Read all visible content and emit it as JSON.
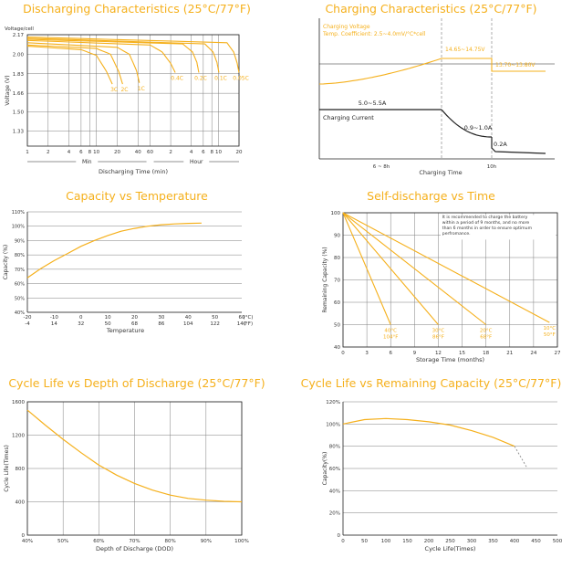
{
  "colors": {
    "accent": "#f5b01c",
    "grid": "#7f7f7f",
    "axis": "#222222",
    "text": "#333333",
    "dash": "#8a8a8a"
  },
  "chart_data": [
    {
      "id": "discharge",
      "type": "line",
      "title": "Discharging Characteristics (25°C/77°F)",
      "ylabel": "Voltage (V)",
      "ytitle": "Voltage/cell",
      "xlabel": "Discharging Time (min)",
      "y_ticks": [
        "2.17",
        "2.00",
        "1.83",
        "1.66",
        "1.50",
        "1.33"
      ],
      "x_ticks": [
        "1",
        "2",
        "4",
        "6",
        "8",
        "10",
        "20",
        "40",
        "60",
        "2",
        "4",
        "6",
        "8",
        "10",
        "20"
      ],
      "min_label": "Min",
      "hour_label": "Hour",
      "series": [
        {
          "name": "3C",
          "label": "3C",
          "points": [
            [
              1,
              2.07
            ],
            [
              6,
              2.04
            ],
            [
              10,
              1.99
            ],
            [
              14,
              1.85
            ],
            [
              17,
              1.74
            ]
          ]
        },
        {
          "name": "2C",
          "label": "2C",
          "points": [
            [
              1,
              2.08
            ],
            [
              10,
              2.05
            ],
            [
              16,
              2.0
            ],
            [
              21,
              1.85
            ],
            [
              24,
              1.74
            ]
          ]
        },
        {
          "name": "1C",
          "label": "1C",
          "points": [
            [
              1,
              2.1
            ],
            [
              20,
              2.06
            ],
            [
              30,
              2.0
            ],
            [
              38,
              1.86
            ],
            [
              42,
              1.75
            ]
          ]
        },
        {
          "name": "0.4C",
          "label": "0.4C",
          "points": [
            [
              1,
              2.12
            ],
            [
              60,
              2.08
            ],
            [
              90,
              2.02
            ],
            [
              120,
              1.92
            ],
            [
              140,
              1.84
            ]
          ]
        },
        {
          "name": "0.2C",
          "label": "0.2C",
          "points": [
            [
              1,
              2.13
            ],
            [
              180,
              2.09
            ],
            [
              250,
              2.02
            ],
            [
              290,
              1.93
            ],
            [
              310,
              1.84
            ]
          ]
        },
        {
          "name": "0.1C",
          "label": "0.1C",
          "points": [
            [
              1,
              2.14
            ],
            [
              380,
              2.09
            ],
            [
              500,
              2.02
            ],
            [
              570,
              1.93
            ],
            [
              610,
              1.84
            ]
          ]
        },
        {
          "name": "0.05C",
          "label": "0.05C",
          "points": [
            [
              1,
              2.15
            ],
            [
              800,
              2.1
            ],
            [
              1000,
              2.02
            ],
            [
              1130,
              1.92
            ],
            [
              1200,
              1.84
            ]
          ]
        }
      ]
    },
    {
      "id": "charge",
      "type": "line",
      "title": "Charging Characteristics (25°C/77°F)",
      "voltage_label_1": "Charging Voltage",
      "voltage_label_2": "Temp. Coefficient: 2.5~4.0mV/°C*cell",
      "label_1465": "14.65~14.75V",
      "label_1370": "13.70~13.80V",
      "label_current": "5.0~5.5A",
      "label_current_name": "Charging Current",
      "label_09": "0.9~1.0A",
      "label_02": "0.2A",
      "x_tick_1": "6 ~ 8h",
      "x_tick_2": "10h",
      "xlabel": "Charging Time"
    },
    {
      "id": "capacity_temp",
      "type": "line",
      "title": "Capacity vs Temperature",
      "ylabel": "Capacity (%)",
      "xlabel": "Temperature",
      "ylim": [
        40,
        110
      ],
      "y_ticks": [
        "110%",
        "100%",
        "90%",
        "80%",
        "70%",
        "60%",
        "50%",
        "40%"
      ],
      "x_ticks_c": [
        "-20",
        "-10",
        "0",
        "10",
        "20",
        "30",
        "40",
        "50",
        "60"
      ],
      "x_ticks_f": [
        "-4",
        "14",
        "32",
        "50",
        "68",
        "86",
        "104",
        "122",
        "140"
      ],
      "unit_c": "(°C)",
      "unit_f": "(°F)",
      "x": [
        -20,
        -15,
        -10,
        -5,
        0,
        5,
        10,
        15,
        20,
        25,
        30,
        35,
        40,
        45
      ],
      "y": [
        64,
        70.5,
        76,
        81,
        86,
        90,
        93.5,
        96.5,
        98.5,
        100,
        101,
        101.6,
        102,
        102.2
      ]
    },
    {
      "id": "self_discharge",
      "type": "line",
      "title": "Self-discharge vs Time",
      "ylabel": "Remaining Capacity (%)",
      "xlabel": "Storage Time (months)",
      "xlim": [
        0,
        27
      ],
      "ylim": [
        40,
        100
      ],
      "x_ticks": [
        "0",
        "3",
        "6",
        "9",
        "12",
        "15",
        "18",
        "21",
        "24",
        "27"
      ],
      "y_ticks": [
        "100",
        "90",
        "80",
        "70",
        "60",
        "50",
        "40"
      ],
      "note": "It is recommended to charge the battery within a period of 9 months, and no more than 6 months in order to ensure optimum perfromance.",
      "series": [
        {
          "name": "40°C 104°F",
          "label_c": "40°C",
          "label_f": "104°F",
          "x": [
            0,
            6
          ],
          "y": [
            100,
            50
          ]
        },
        {
          "name": "30°C 86°F",
          "label_c": "30°C",
          "label_f": "86°F",
          "x": [
            0,
            12
          ],
          "y": [
            100,
            50
          ]
        },
        {
          "name": "20°C 68°F",
          "label_c": "20°C",
          "label_f": "68°F",
          "x": [
            0,
            18
          ],
          "y": [
            100,
            50
          ]
        },
        {
          "name": "10°C 50°F",
          "label_c": "10°C",
          "label_f": "50°F",
          "x": [
            0,
            26
          ],
          "y": [
            100,
            51
          ]
        }
      ]
    },
    {
      "id": "cycle_dod",
      "type": "line",
      "title": "Cycle Life vs Depth of Discharge (25°C/77°F)",
      "ylabel": "Cycle Life(Times)",
      "xlabel": "Depth of Discharge (DOD)",
      "xlim": [
        40,
        100
      ],
      "ylim": [
        0,
        1600
      ],
      "x_ticks": [
        "40%",
        "50%",
        "60%",
        "70%",
        "80%",
        "90%",
        "100%"
      ],
      "y_ticks": [
        "1600",
        "1200",
        "800",
        "400",
        "0"
      ],
      "x": [
        40,
        45,
        50,
        55,
        60,
        65,
        70,
        75,
        80,
        85,
        90,
        95,
        100
      ],
      "y": [
        1500,
        1320,
        1150,
        990,
        840,
        720,
        620,
        540,
        480,
        440,
        420,
        405,
        400
      ]
    },
    {
      "id": "cycle_capacity",
      "type": "line",
      "title": "Cycle Life vs Remaining Capacity (25°C/77°F)",
      "ylabel": "Capacity(%)",
      "xlabel": "Cycle Life(Times)",
      "xlim": [
        0,
        500
      ],
      "ylim": [
        0,
        120
      ],
      "x_ticks": [
        "0",
        "50",
        "100",
        "150",
        "200",
        "250",
        "300",
        "350",
        "400",
        "450",
        "500"
      ],
      "y_ticks": [
        "120%",
        "100%",
        "80%",
        "60%",
        "40%",
        "20%",
        "0"
      ],
      "x": [
        0,
        50,
        100,
        150,
        200,
        250,
        300,
        350,
        400
      ],
      "y": [
        100,
        104,
        105,
        104,
        102,
        99,
        94,
        88,
        80
      ],
      "dashed_x": [
        400,
        415,
        430
      ],
      "dashed_y": [
        80,
        70,
        60
      ]
    }
  ]
}
